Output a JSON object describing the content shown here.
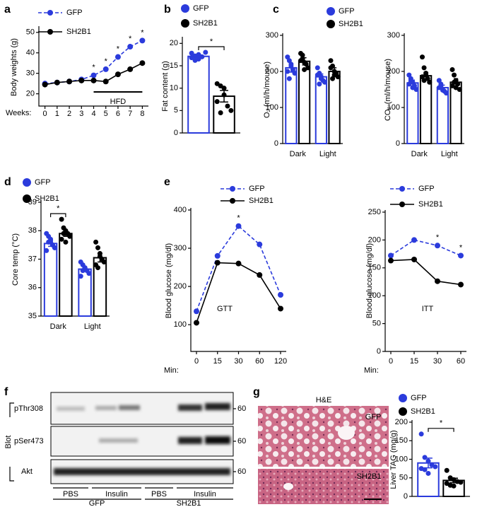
{
  "panel_labels": [
    "a",
    "b",
    "c",
    "d",
    "e",
    "f",
    "g"
  ],
  "chart_data": [
    {
      "type": "line",
      "y_label": "Body weights (g)",
      "x_label": "Weeks:",
      "x": [
        0,
        1,
        2,
        3,
        4,
        5,
        6,
        7,
        8
      ],
      "xlim": [
        -0.5,
        8.5
      ],
      "xticks": [
        0,
        1,
        2,
        3,
        4,
        5,
        6,
        7,
        8
      ],
      "ylim": [
        14,
        52
      ],
      "yticks": [
        20,
        30,
        40,
        50
      ],
      "legend": "top-left",
      "series": [
        {
          "name": "GFP",
          "color": "#2b3bdc",
          "style": "dashed",
          "values": [
            25,
            25.5,
            26,
            27,
            29,
            32,
            38,
            43,
            46
          ]
        },
        {
          "name": "SH2B1",
          "color": "#000000",
          "style": "solid",
          "values": [
            24.5,
            25.5,
            26,
            26.5,
            26.5,
            26,
            29.5,
            32,
            35
          ]
        }
      ],
      "significance": [
        {
          "x": 4,
          "label": "*"
        },
        {
          "x": 5,
          "label": "*"
        },
        {
          "x": 6,
          "label": "*"
        },
        {
          "x": 7,
          "label": "*"
        },
        {
          "x": 8,
          "label": "*"
        }
      ],
      "annotation": {
        "text": "HFD",
        "from": 4,
        "to": 8
      }
    },
    {
      "type": "bar",
      "y_label": "Fat content (g)",
      "categories": [
        null
      ],
      "ylim": [
        0,
        21
      ],
      "yticks": [
        0,
        5,
        10,
        15,
        20
      ],
      "legend": "top-left",
      "series": [
        {
          "name": "GFP",
          "color": "#2b3bdc",
          "values": [
            17.1
          ],
          "errors": [
            0.3
          ],
          "points": [
            [
              17.8,
              17.2,
              16.5,
              17.0,
              18.0,
              16.8,
              16.2,
              17.5
            ]
          ]
        },
        {
          "name": "SH2B1",
          "color": "#000000",
          "values": [
            8.2
          ],
          "errors": [
            1.3
          ],
          "points": [
            [
              11.0,
              10.5,
              8.5,
              6.0,
              5.0,
              7.0,
              4.5,
              10.0
            ]
          ]
        }
      ],
      "significance": [
        {
          "label": "*"
        }
      ]
    },
    {
      "type": "bar",
      "y_label": "O₂ (ml/h/mouse)",
      "categories": [
        "Dark",
        "Light"
      ],
      "ylim": [
        0,
        300
      ],
      "yticks": [
        0,
        100,
        200,
        300
      ],
      "legend": "top-right",
      "series": [
        {
          "name": "GFP",
          "color": "#2b3bdc",
          "values": [
            210,
            185
          ],
          "errors": [
            12,
            8
          ],
          "points": [
            [
              240,
              230,
              215,
              205,
              195,
              200,
              180,
              220
            ],
            [
              210,
              195,
              180,
              175,
              170,
              190,
              165,
              185
            ]
          ]
        },
        {
          "name": "SH2B1",
          "color": "#000000",
          "values": [
            228,
            200
          ],
          "errors": [
            10,
            10
          ],
          "points": [
            [
              250,
              235,
              225,
              220,
              210,
              230,
              245,
              205
            ],
            [
              230,
              215,
              200,
              195,
              185,
              210,
              180,
              190
            ]
          ]
        }
      ]
    },
    {
      "type": "bar",
      "y_label": "CO₂ (ml/h/mouse)",
      "categories": [
        "Dark",
        "Light"
      ],
      "ylim": [
        0,
        300
      ],
      "yticks": [
        0,
        100,
        200,
        300
      ],
      "series": [
        {
          "color": "#2b3bdc",
          "values": [
            168,
            155
          ],
          "errors": [
            8,
            7
          ],
          "points": [
            [
              190,
              180,
              170,
              160,
              150,
              165,
              175,
              155
            ],
            [
              175,
              165,
              150,
              145,
              140,
              155,
              160,
              148
            ]
          ]
        },
        {
          "color": "#000000",
          "values": [
            188,
            170
          ],
          "errors": [
            10,
            10
          ],
          "points": [
            [
              240,
              210,
              195,
              180,
              170,
              185,
              175,
              190
            ],
            [
              205,
              190,
              175,
              165,
              150,
              160,
              170,
              155
            ]
          ]
        }
      ]
    },
    {
      "type": "bar",
      "y_label": "Core temp (°C)",
      "categories": [
        "Dark",
        "Light"
      ],
      "ylim": [
        35,
        39
      ],
      "yticks": [
        35,
        36,
        37,
        38,
        39
      ],
      "legend": "top-left",
      "series": [
        {
          "name": "GFP",
          "color": "#2b3bdc",
          "values": [
            37.55,
            36.65
          ],
          "errors": [
            0.1,
            0.07
          ],
          "points": [
            [
              37.9,
              37.8,
              37.6,
              37.5,
              37.4,
              37.3,
              37.6,
              37.7,
              37.5,
              37.4
            ],
            [
              36.9,
              36.8,
              36.7,
              36.6,
              36.5,
              36.4,
              36.6,
              36.7
            ]
          ]
        },
        {
          "name": "SH2B1",
          "color": "#000000",
          "values": [
            37.9,
            37.05
          ],
          "errors": [
            0.1,
            0.15
          ],
          "points": [
            [
              38.4,
              38.1,
              38.0,
              37.9,
              37.8,
              37.7,
              37.9,
              37.6
            ],
            [
              37.6,
              37.4,
              37.2,
              37.0,
              36.9,
              36.8,
              36.7,
              37.1
            ]
          ]
        }
      ],
      "significance": [
        {
          "category": "Dark",
          "label": "*"
        }
      ]
    },
    {
      "type": "line",
      "y_label": "Blood glucose (mg/dl)",
      "x_label": "Min:",
      "categories": [
        "0",
        "15",
        "30",
        "60",
        "120"
      ],
      "ylim": [
        30,
        400
      ],
      "yticks": [
        100,
        200,
        300,
        400
      ],
      "legend": "top",
      "series": [
        {
          "name": "GFP",
          "color": "#2b3bdc",
          "style": "dashed",
          "values": [
            135,
            280,
            358,
            310,
            178
          ]
        },
        {
          "name": "SH2B1",
          "color": "#000000",
          "style": "solid",
          "values": [
            105,
            262,
            260,
            230,
            142
          ]
        }
      ],
      "significance": [
        {
          "category": "30",
          "label": "*"
        }
      ],
      "annotation": {
        "text": "GTT"
      }
    },
    {
      "type": "line",
      "y_label": "Blood glucose (mg/dl)",
      "x_label": "Min:",
      "categories": [
        "0",
        "15",
        "30",
        "60"
      ],
      "ylim": [
        0,
        250
      ],
      "yticks": [
        0,
        50,
        100,
        150,
        200,
        250
      ],
      "legend": "top",
      "series": [
        {
          "name": "GFP",
          "color": "#2b3bdc",
          "style": "dashed",
          "values": [
            172,
            200,
            190,
            172
          ]
        },
        {
          "name": "SH2B1",
          "color": "#000000",
          "style": "solid",
          "values": [
            163,
            165,
            126,
            120
          ]
        }
      ],
      "significance": [
        {
          "category": "30",
          "label": "*"
        },
        {
          "category": "60",
          "label": "*"
        }
      ],
      "annotation": {
        "text": "ITT"
      }
    },
    {
      "type": "bar",
      "y_label": "Liver TAG (mg/g)",
      "categories": [
        null
      ],
      "ylim": [
        0,
        200
      ],
      "yticks": [
        0,
        50,
        100,
        150,
        200
      ],
      "legend": "top-right",
      "series": [
        {
          "name": "GFP",
          "color": "#2b3bdc",
          "values": [
            90
          ],
          "errors": [
            13
          ],
          "points": [
            [
              168,
              105,
              95,
              85,
              80,
              75,
              72,
              62
            ]
          ]
        },
        {
          "name": "SH2B1",
          "color": "#000000",
          "values": [
            43
          ],
          "errors": [
            6
          ],
          "points": [
            [
              70,
              50,
              45,
              40,
              38,
              35,
              30,
              28
            ]
          ]
        }
      ],
      "significance": [
        {
          "label": "*"
        }
      ]
    }
  ],
  "blot": {
    "rows": [
      "pThr308",
      "pSer473",
      "Akt"
    ],
    "axis_label": "Blot",
    "marker": "60",
    "treatments": [
      "PBS",
      "Insulin",
      "PBS",
      "Insulin"
    ],
    "groups": [
      "GFP",
      "SH2B1"
    ]
  },
  "histology": {
    "stain": "H&E",
    "images": [
      "GFP",
      "SH2B1"
    ]
  }
}
